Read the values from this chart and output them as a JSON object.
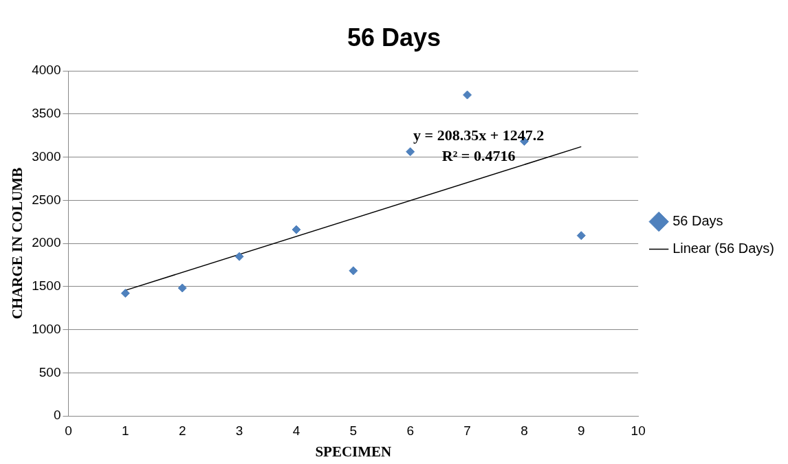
{
  "chart_data": {
    "type": "scatter",
    "title": "56 Days",
    "xlabel": "SPECIMEN",
    "ylabel": "CHARGE IN COLUMB",
    "x": [
      1,
      2,
      3,
      4,
      5,
      6,
      7,
      8,
      9
    ],
    "series": [
      {
        "name": "56 Days",
        "color": "#4f81bd",
        "values": [
          1422,
          1483,
          1848,
          2160,
          1683,
          3063,
          3722,
          3184,
          2091
        ]
      },
      {
        "name": "Linear (56 Days)",
        "type": "line",
        "color": "#000000",
        "x": [
          1,
          9
        ],
        "values": [
          1456,
          3122
        ],
        "marker": "none",
        "line_style": "solid"
      }
    ],
    "annotations": [
      "y = 208.35x + 1247.2",
      "R² = 0.4716"
    ],
    "xlim": [
      0,
      10
    ],
    "xticks": [
      0,
      1,
      2,
      3,
      4,
      5,
      6,
      7,
      8,
      9,
      10
    ],
    "ylim": [
      0,
      4000
    ],
    "yticks": [
      0,
      500,
      1000,
      1500,
      2000,
      2500,
      3000,
      3500,
      4000
    ],
    "grid": "y",
    "legend": "right",
    "marker": "diamond"
  }
}
